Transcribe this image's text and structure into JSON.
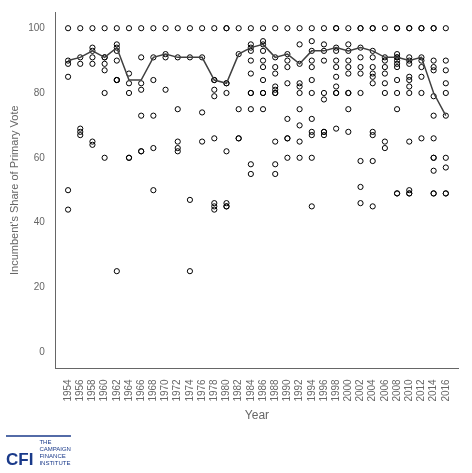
{
  "chart_data": {
    "type": "scatter",
    "xlabel": "Year",
    "ylabel": "Incumbent's Share of Primary Vote",
    "xlim": [
      1952,
      2018
    ],
    "ylim": [
      -5,
      105
    ],
    "xticks": [
      1954,
      1956,
      1958,
      1960,
      1962,
      1964,
      1966,
      1968,
      1970,
      1972,
      1974,
      1976,
      1978,
      1980,
      1982,
      1984,
      1986,
      1988,
      1990,
      1992,
      1994,
      1996,
      1998,
      2000,
      2002,
      2004,
      2006,
      2008,
      2010,
      2012,
      2014,
      2016
    ],
    "yticks": [
      0,
      20,
      40,
      60,
      80,
      100
    ],
    "grid": false,
    "series": [
      {
        "type": "scatter",
        "marker": "circle",
        "color": "#000000",
        "x": [
          1954,
          1954,
          1954,
          1954,
          1954,
          1954,
          1956,
          1956,
          1956,
          1956,
          1956,
          1956,
          1958,
          1958,
          1958,
          1958,
          1958,
          1958,
          1958,
          1960,
          1960,
          1960,
          1960,
          1960,
          1960,
          1960,
          1962,
          1962,
          1962,
          1962,
          1962,
          1962,
          1962,
          1962,
          1962,
          1964,
          1964,
          1964,
          1964,
          1964,
          1964,
          1966,
          1966,
          1966,
          1966,
          1966,
          1966,
          1966,
          1968,
          1968,
          1968,
          1968,
          1968,
          1968,
          1970,
          1970,
          1970,
          1970,
          1972,
          1972,
          1972,
          1972,
          1972,
          1972,
          1974,
          1974,
          1974,
          1974,
          1976,
          1976,
          1976,
          1976,
          1978,
          1978,
          1978,
          1978,
          1978,
          1978,
          1978,
          1978,
          1978,
          1980,
          1980,
          1980,
          1980,
          1980,
          1980,
          1980,
          1980,
          1980,
          1982,
          1982,
          1982,
          1982,
          1982,
          1984,
          1984,
          1984,
          1984,
          1984,
          1984,
          1984,
          1984,
          1984,
          1984,
          1984,
          1986,
          1986,
          1986,
          1986,
          1986,
          1986,
          1986,
          1986,
          1986,
          1986,
          1988,
          1988,
          1988,
          1988,
          1988,
          1988,
          1988,
          1988,
          1988,
          1988,
          1988,
          1990,
          1990,
          1990,
          1990,
          1990,
          1990,
          1990,
          1990,
          1990,
          1992,
          1992,
          1992,
          1992,
          1992,
          1992,
          1992,
          1992,
          1992,
          1992,
          1994,
          1994,
          1994,
          1994,
          1994,
          1994,
          1994,
          1994,
          1994,
          1994,
          1994,
          1994,
          1996,
          1996,
          1996,
          1996,
          1996,
          1996,
          1996,
          1996,
          1996,
          1998,
          1998,
          1998,
          1998,
          1998,
          1998,
          1998,
          1998,
          1998,
          1998,
          1998,
          2000,
          2000,
          2000,
          2000,
          2000,
          2000,
          2000,
          2000,
          2000,
          2000,
          2002,
          2002,
          2002,
          2002,
          2002,
          2002,
          2002,
          2002,
          2002,
          2002,
          2004,
          2004,
          2004,
          2004,
          2004,
          2004,
          2004,
          2004,
          2004,
          2004,
          2004,
          2004,
          2006,
          2006,
          2006,
          2006,
          2006,
          2006,
          2006,
          2006,
          2006,
          2008,
          2008,
          2008,
          2008,
          2008,
          2008,
          2008,
          2008,
          2008,
          2008,
          2008,
          2008,
          2008,
          2010,
          2010,
          2010,
          2010,
          2010,
          2010,
          2010,
          2010,
          2010,
          2010,
          2010,
          2010,
          2010,
          2012,
          2012,
          2012,
          2012,
          2012,
          2012,
          2012,
          2012,
          2014,
          2014,
          2014,
          2014,
          2014,
          2014,
          2014,
          2014,
          2014,
          2014,
          2014,
          2014,
          2014,
          2016,
          2016,
          2016,
          2016,
          2016,
          2016,
          2016,
          2016,
          2016,
          2016
        ],
        "values": [
          100,
          90,
          89,
          85,
          50,
          44,
          100,
          91,
          89,
          69,
          68,
          67,
          100,
          94,
          93,
          91,
          89,
          65,
          64,
          100,
          91,
          91,
          89,
          87,
          80,
          60,
          100,
          95,
          94,
          93,
          90,
          84,
          84,
          84,
          25,
          100,
          86,
          83,
          80,
          60,
          60,
          100,
          91,
          83,
          81,
          73,
          62,
          62,
          100,
          91,
          84,
          73,
          63,
          50,
          100,
          92,
          91,
          81,
          100,
          91,
          75,
          65,
          63,
          62,
          100,
          91,
          47,
          25,
          100,
          91,
          74,
          65,
          100,
          84,
          84,
          81,
          79,
          66,
          46,
          45,
          44,
          100,
          100,
          83,
          83,
          80,
          62,
          45,
          45,
          46,
          100,
          92,
          75,
          66,
          66,
          100,
          95,
          94,
          93,
          90,
          86,
          80,
          80,
          75,
          58,
          55,
          100,
          96,
          95,
          93,
          90,
          88,
          84,
          80,
          80,
          75,
          100,
          91,
          88,
          86,
          82,
          81,
          80,
          80,
          65,
          58,
          55,
          100,
          92,
          90,
          88,
          83,
          72,
          66,
          66,
          60,
          100,
          95,
          89,
          83,
          82,
          80,
          75,
          70,
          65,
          60,
          100,
          96,
          93,
          90,
          88,
          84,
          80,
          72,
          68,
          67,
          60,
          45,
          100,
          95,
          93,
          90,
          80,
          78,
          68,
          67,
          68,
          100,
          100,
          94,
          93,
          90,
          88,
          85,
          82,
          80,
          80,
          69,
          100,
          95,
          93,
          90,
          88,
          86,
          80,
          80,
          75,
          68,
          100,
          100,
          94,
          91,
          88,
          86,
          80,
          59,
          51,
          46,
          100,
          100,
          93,
          91,
          88,
          86,
          85,
          83,
          68,
          67,
          59,
          45,
          100,
          91,
          90,
          88,
          86,
          83,
          80,
          65,
          63,
          100,
          100,
          92,
          91,
          91,
          90,
          89,
          88,
          84,
          80,
          75,
          49,
          49,
          100,
          100,
          91,
          90,
          89,
          85,
          84,
          82,
          80,
          65,
          50,
          49,
          49,
          100,
          100,
          91,
          90,
          88,
          85,
          80,
          66,
          100,
          100,
          90,
          88,
          87,
          79,
          73,
          66,
          60,
          60,
          56,
          49,
          49,
          100,
          90,
          87,
          83,
          80,
          73,
          60,
          57,
          49,
          49
        ]
      },
      {
        "type": "line",
        "line_style": "solid",
        "color": "#404040",
        "x": [
          1954,
          1956,
          1958,
          1960,
          1962,
          1964,
          1966,
          1968,
          1970,
          1972,
          1974,
          1976,
          1978,
          1980,
          1982,
          1984,
          1986,
          1988,
          1990,
          1992,
          1994,
          1996,
          1998,
          2000,
          2002,
          2004,
          2006,
          2008,
          2010,
          2012,
          2014,
          2016
        ],
        "values": [
          90,
          91,
          93,
          91,
          94,
          84,
          84,
          91,
          92,
          91,
          91,
          91,
          84,
          83,
          92,
          94,
          95,
          91,
          92,
          89,
          93,
          93,
          94,
          93,
          94,
          93,
          91,
          91,
          90,
          91,
          80,
          73
        ]
      }
    ],
    "annotations": [
      {
        "text": "CFI",
        "color": "#1a3a8a"
      },
      {
        "text": "THE\nCAMPAIGN\nFINANCE\nINSTITUTE",
        "color": "#1a3a8a"
      }
    ]
  }
}
